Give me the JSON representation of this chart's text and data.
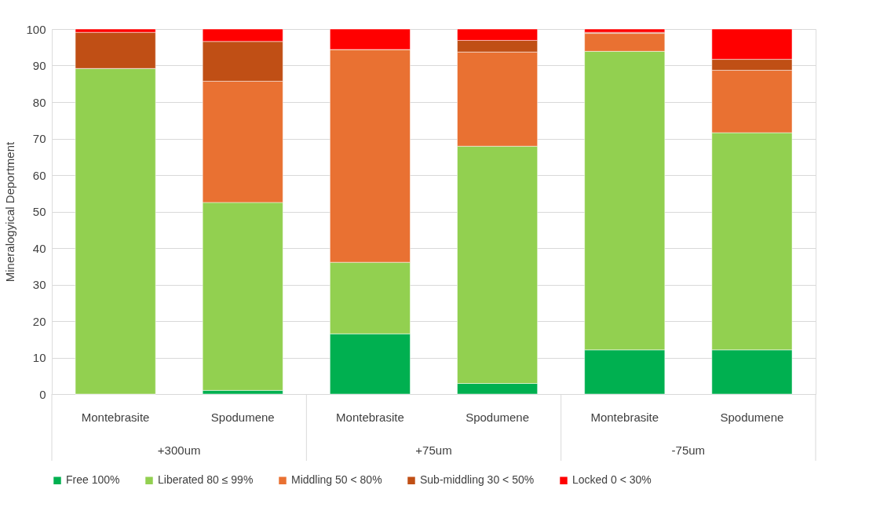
{
  "chart_data": {
    "type": "bar",
    "stacked": true,
    "ylabel": "Mineralogyical Deportment",
    "categories": [
      "Montebrasite",
      "Spodumene",
      "Montebrasite",
      "Spodumene",
      "Montebrasite",
      "Spodumene"
    ],
    "annotations": [
      "+300um",
      "+75um",
      "-75um"
    ],
    "series": [
      {
        "name": "Free 100%",
        "color": "#00b050",
        "values": [
          0,
          1.0,
          16.5,
          2.9,
          12.1,
          12.1
        ]
      },
      {
        "name": "Liberated 80 ≤ 99%",
        "color": "#92d050",
        "values": [
          89.2,
          51.5,
          19.6,
          65.0,
          81.8,
          59.5
        ]
      },
      {
        "name": "Middling 50 < 80%",
        "color": "#e97132",
        "values": [
          0,
          33.2,
          58.3,
          25.8,
          4.9,
          17.1
        ]
      },
      {
        "name": "Sub-middling 30 < 50%",
        "color": "#c04f15",
        "values": [
          9.9,
          10.9,
          0,
          3.2,
          0.3,
          3.0
        ]
      },
      {
        "name": "Locked 0 < 30%",
        "color": "#ff0000",
        "values": [
          0.9,
          3.4,
          5.6,
          3.1,
          0.9,
          8.3
        ]
      }
    ],
    "ylim": [
      0,
      100
    ],
    "yticks": [
      0,
      10,
      20,
      30,
      40,
      50,
      60,
      70,
      80,
      90,
      100
    ],
    "grid": "y",
    "legend": "bottom"
  }
}
